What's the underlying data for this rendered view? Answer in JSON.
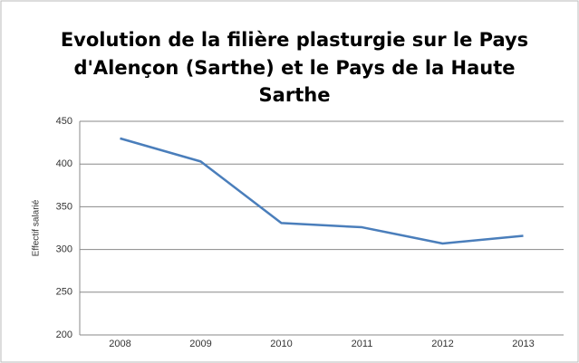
{
  "chart_data": {
    "type": "line",
    "title": [
      "Evolution de la filière plasturgie sur le Pays",
      "d'Alençon (Sarthe) et le Pays de la Haute",
      "Sarthe"
    ],
    "y_label": "Effectif salarié",
    "categories": [
      "2008",
      "2009",
      "2010",
      "2011",
      "2012",
      "2013"
    ],
    "series": [
      {
        "name": "Effectif salarié",
        "color": "#4a7ebb",
        "values": [
          430,
          403,
          331,
          326,
          307,
          316
        ]
      }
    ],
    "ylim": [
      200,
      450
    ],
    "yticks": [
      200,
      250,
      300,
      350,
      400,
      450
    ],
    "grid": true
  }
}
